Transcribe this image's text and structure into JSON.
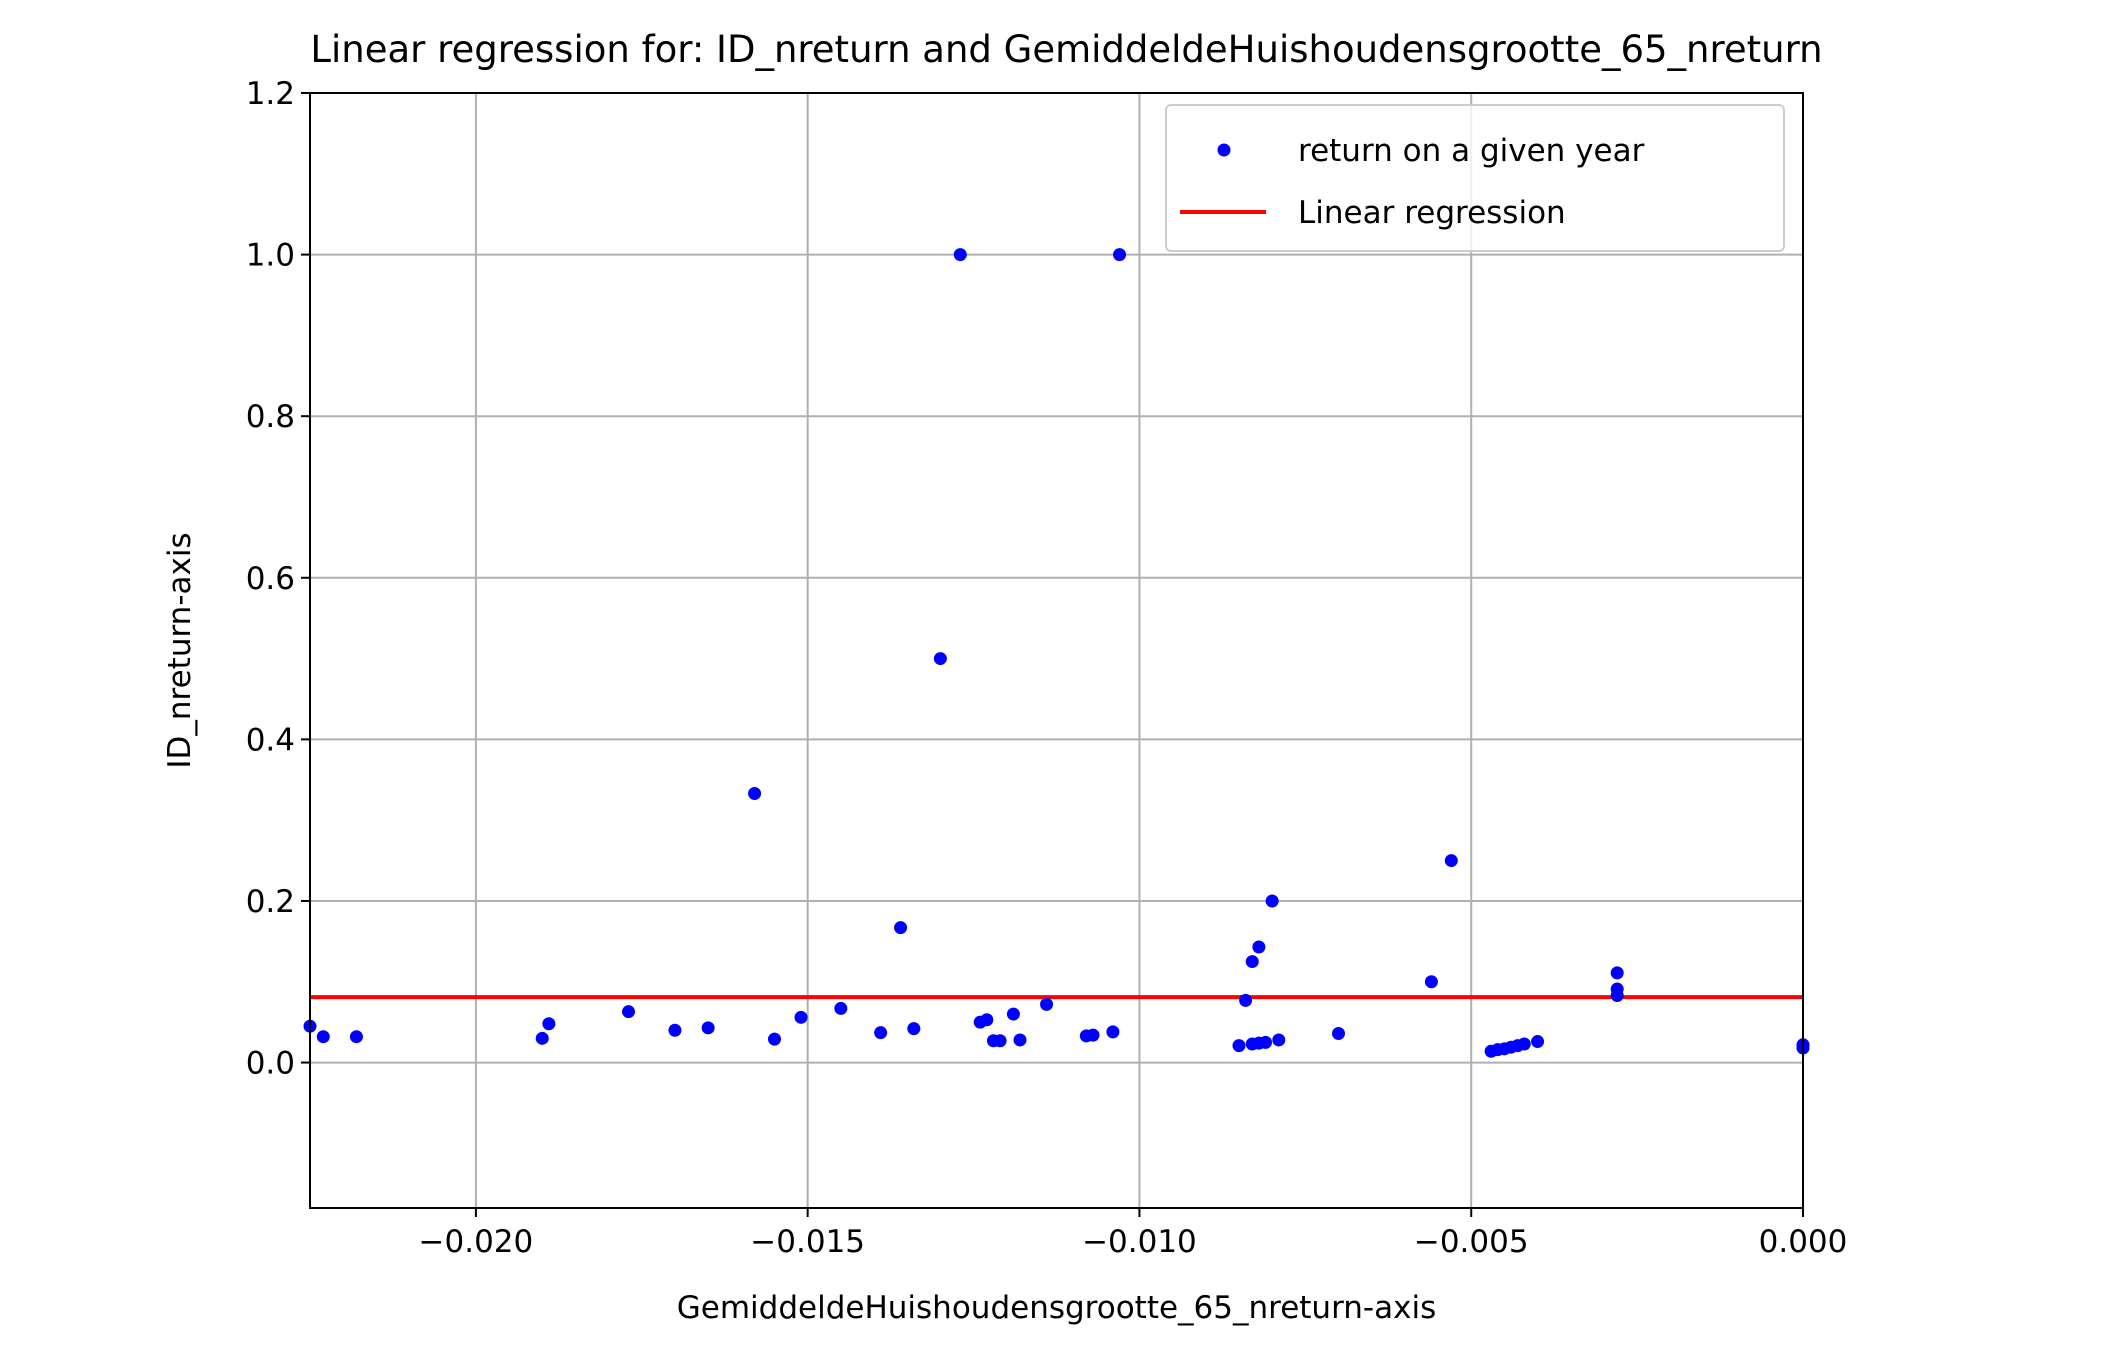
{
  "chart_data": {
    "type": "scatter",
    "title": "Linear regression for: ID_nreturn and GemiddeldeHuishoudensgrootte_65_nreturn",
    "xlabel": "GemiddeldeHuishoudensgrootte_65_nreturn-axis",
    "ylabel": "ID_nreturn-axis",
    "xlim": [
      -0.0225,
      0.0
    ],
    "ylim": [
      -0.18,
      1.2
    ],
    "xticks": [
      -0.02,
      -0.015,
      -0.01,
      -0.005,
      0.0
    ],
    "xtick_labels": [
      "−0.020",
      "−0.015",
      "−0.010",
      "−0.005",
      "0.000"
    ],
    "yticks": [
      0.0,
      0.2,
      0.4,
      0.6,
      0.8,
      1.0,
      1.2
    ],
    "ytick_labels": [
      "0.0",
      "0.2",
      "0.4",
      "0.6",
      "0.8",
      "1.0",
      "1.2"
    ],
    "grid": true,
    "legend_position": "top-right",
    "series": [
      {
        "name": "return on a given year",
        "kind": "scatter",
        "color": "#0000ff",
        "points": [
          [
            -0.0225,
            0.045
          ],
          [
            -0.0223,
            0.032
          ],
          [
            -0.0218,
            0.032
          ],
          [
            -0.019,
            0.03
          ],
          [
            -0.0189,
            0.048
          ],
          [
            -0.0177,
            0.063
          ],
          [
            -0.017,
            0.04
          ],
          [
            -0.0165,
            0.043
          ],
          [
            -0.0158,
            0.333
          ],
          [
            -0.0155,
            0.029
          ],
          [
            -0.0151,
            0.056
          ],
          [
            -0.0145,
            0.067
          ],
          [
            -0.0139,
            0.037
          ],
          [
            -0.0136,
            0.167
          ],
          [
            -0.0134,
            0.042
          ],
          [
            -0.013,
            0.5
          ],
          [
            -0.0127,
            1.0
          ],
          [
            -0.0124,
            0.05
          ],
          [
            -0.0123,
            0.053
          ],
          [
            -0.0122,
            0.027
          ],
          [
            -0.0121,
            0.027
          ],
          [
            -0.0119,
            0.06
          ],
          [
            -0.0118,
            0.028
          ],
          [
            -0.0114,
            0.072
          ],
          [
            -0.0108,
            0.033
          ],
          [
            -0.0107,
            0.034
          ],
          [
            -0.0103,
            1.0
          ],
          [
            -0.0104,
            0.038
          ],
          [
            -0.0085,
            0.021
          ],
          [
            -0.0084,
            0.077
          ],
          [
            -0.0083,
            0.023
          ],
          [
            -0.0083,
            0.125
          ],
          [
            -0.0082,
            0.143
          ],
          [
            -0.0082,
            0.024
          ],
          [
            -0.0081,
            0.025
          ],
          [
            -0.008,
            0.2
          ],
          [
            -0.0079,
            0.028
          ],
          [
            -0.007,
            0.036
          ],
          [
            -0.0056,
            0.1
          ],
          [
            -0.0053,
            0.25
          ],
          [
            -0.0047,
            0.014
          ],
          [
            -0.0046,
            0.016
          ],
          [
            -0.0045,
            0.017
          ],
          [
            -0.0044,
            0.019
          ],
          [
            -0.0043,
            0.021
          ],
          [
            -0.0042,
            0.023
          ],
          [
            -0.004,
            0.026
          ],
          [
            -0.0028,
            0.111
          ],
          [
            -0.0028,
            0.091
          ],
          [
            -0.0028,
            0.083
          ],
          [
            0.0,
            0.022
          ],
          [
            0.0,
            0.018
          ]
        ]
      },
      {
        "name": "Linear regression",
        "kind": "line",
        "color": "#ff0000",
        "points": [
          [
            -0.0225,
            0.081
          ],
          [
            0.0,
            0.081
          ]
        ]
      }
    ]
  }
}
